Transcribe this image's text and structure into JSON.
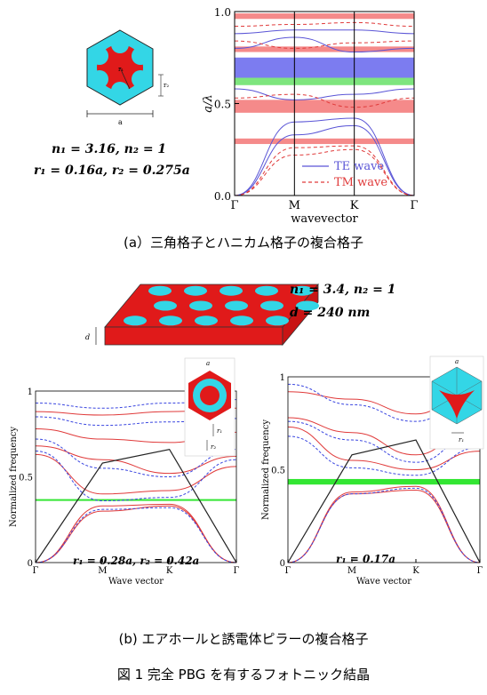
{
  "panel_a": {
    "params": [
      "n₁ = 3.16,  n₂ = 1",
      "r₁ = 0.16a,  r₂ = 0.275a"
    ],
    "cell_labels": {
      "a": "a",
      "r": "r₁",
      "r2": "r₂"
    },
    "caption": "(a）三角格子とハニカム格子の複合格子",
    "chart_data": {
      "type": "line",
      "xlabel": "wavevector",
      "ylabel": "a/λ",
      "ylim": [
        0.0,
        1.0
      ],
      "x_ticks": [
        "Γ",
        "M",
        "K",
        "Γ"
      ],
      "y_ticks": [
        "0.0",
        "0.5",
        "1.0"
      ],
      "legend": [
        "TE wave",
        "TM wave"
      ],
      "legend_position": "bottom-right",
      "colors": {
        "te": "#5a55d6",
        "tm": "#e03a3a",
        "te_gap": "#7c7cf0",
        "tm_gap": "#f58a8a",
        "full_gap": "#7ee57e"
      },
      "te_gaps": [
        [
          0.64,
          0.75
        ]
      ],
      "tm_gaps": [
        [
          0.28,
          0.31
        ],
        [
          0.45,
          0.52
        ],
        [
          0.78,
          0.81
        ],
        [
          0.96,
          0.99
        ]
      ],
      "complete_gap": [
        0.6,
        0.64
      ],
      "series": [
        {
          "name": "TE wave",
          "points_x": [
            0,
            1,
            2,
            3
          ],
          "bands": [
            [
              0.0,
              0.33,
              0.38,
              0.0
            ],
            [
              0.0,
              0.4,
              0.42,
              0.0
            ],
            [
              0.58,
              0.52,
              0.55,
              0.58
            ],
            [
              0.8,
              0.86,
              0.78,
              0.8
            ],
            [
              0.88,
              0.9,
              0.9,
              0.88
            ]
          ]
        },
        {
          "name": "TM wave",
          "points_x": [
            0,
            1,
            2,
            3
          ],
          "bands": [
            [
              0.0,
              0.22,
              0.25,
              0.0
            ],
            [
              0.0,
              0.26,
              0.27,
              0.0
            ],
            [
              0.53,
              0.55,
              0.48,
              0.53
            ],
            [
              0.84,
              0.8,
              0.83,
              0.84
            ],
            [
              0.92,
              0.93,
              0.94,
              0.92
            ]
          ]
        }
      ]
    }
  },
  "panel_b": {
    "params": [
      "n₁ = 3.4,  n₂ = 1",
      "d = 240 nm"
    ],
    "slab_label": "d",
    "caption": "(b) エアホールと誘電体ピラーの複合格子",
    "left": {
      "annotation": "r₁ = 0.28a,  r₂ = 0.42a",
      "cell_labels": {
        "a": "a",
        "r1": "r₁",
        "r2": "r₂"
      },
      "chart_data": {
        "type": "line",
        "xlabel": "Wave vector",
        "ylabel": "Normalized frequency",
        "ylim": [
          0,
          1
        ],
        "x_ticks": [
          "Γ",
          "M",
          "K",
          "Γ"
        ],
        "y_ticks": [
          "0",
          "0.5",
          "1"
        ],
        "complete_gap": [
          0.365,
          0.37
        ],
        "light_line": [
          [
            0,
            0
          ],
          [
            1,
            0.58
          ],
          [
            2,
            0.66
          ],
          [
            3,
            0
          ]
        ],
        "series": [
          {
            "name": "",
            "color": "#e03a3a",
            "bands": [
              [
                0.0,
                0.3,
                0.33,
                0.0
              ],
              [
                0.0,
                0.33,
                0.34,
                0.0
              ],
              [
                0.63,
                0.4,
                0.42,
                0.56
              ],
              [
                0.68,
                0.6,
                0.52,
                0.62
              ],
              [
                0.78,
                0.72,
                0.7,
                0.76
              ],
              [
                0.88,
                0.86,
                0.88,
                0.9
              ]
            ]
          },
          {
            "name": "",
            "color": "#3a46e0",
            "bands": [
              [
                0.0,
                0.31,
                0.32,
                0.0
              ],
              [
                0.65,
                0.36,
                0.38,
                0.6
              ],
              [
                0.72,
                0.55,
                0.5,
                0.66
              ],
              [
                0.85,
                0.8,
                0.82,
                0.84
              ],
              [
                0.93,
                0.9,
                0.93,
                0.95
              ]
            ]
          }
        ]
      }
    },
    "right": {
      "annotation": "r₁ = 0.17a",
      "cell_labels": {
        "a": "a",
        "r1": "r₁"
      },
      "chart_data": {
        "type": "line",
        "xlabel": "Wave vector",
        "ylabel": "Normalized frequency",
        "ylim": [
          0,
          1
        ],
        "x_ticks": [
          "Γ",
          "M",
          "K",
          "Γ"
        ],
        "y_ticks": [
          "0",
          "0.5",
          "1"
        ],
        "complete_gap": [
          0.42,
          0.45
        ],
        "light_line": [
          [
            0,
            0
          ],
          [
            1,
            0.58
          ],
          [
            2,
            0.66
          ],
          [
            3,
            0
          ]
        ],
        "series": [
          {
            "name": "",
            "color": "#e03a3a",
            "bands": [
              [
                0.0,
                0.37,
                0.39,
                0.0
              ],
              [
                0.0,
                0.38,
                0.41,
                0.0
              ],
              [
                0.73,
                0.55,
                0.5,
                0.6
              ],
              [
                0.78,
                0.7,
                0.58,
                0.78
              ],
              [
                0.92,
                0.88,
                0.8,
                0.98
              ]
            ]
          },
          {
            "name": "",
            "color": "#3a46e0",
            "bands": [
              [
                0.0,
                0.37,
                0.4,
                0.0
              ],
              [
                0.68,
                0.51,
                0.47,
                0.62
              ],
              [
                0.76,
                0.66,
                0.54,
                0.72
              ],
              [
                0.96,
                0.85,
                0.76,
                0.96
              ]
            ]
          }
        ]
      }
    }
  },
  "figure_caption": "図 1 完全 PBG を有するフォトニック結晶"
}
